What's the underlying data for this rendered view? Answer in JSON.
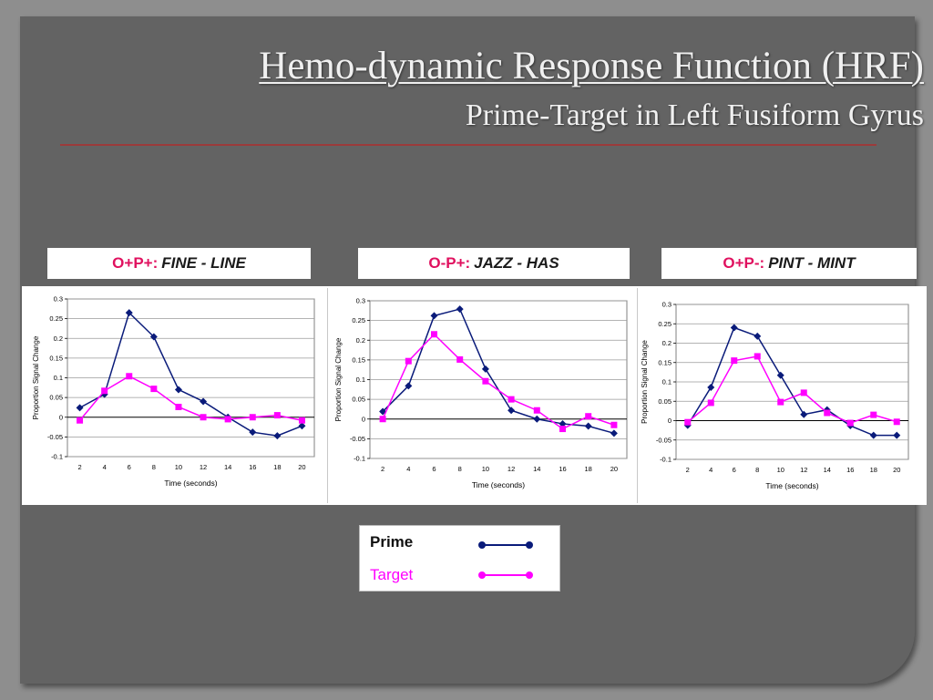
{
  "title": "Hemo-dynamic Response Function (HRF)",
  "subtitle": "Prime-Target in Left Fusiform Gyrus",
  "colors": {
    "prime": "#0a1b7a",
    "target": "#ff00ff",
    "condition_code": "#e0115f"
  },
  "legend": {
    "prime": "Prime",
    "target": "Target"
  },
  "chart_data": [
    {
      "type": "line",
      "panel_label": {
        "code": "O+P+:",
        "words": "FINE - LINE"
      },
      "xlabel": "Time (seconds)",
      "ylabel": "Proportion  Signal  Change",
      "x": [
        2,
        4,
        6,
        8,
        10,
        12,
        14,
        16,
        18,
        20
      ],
      "ylim": [
        -0.1,
        0.3
      ],
      "yticks": [
        -0.1,
        -0.05,
        0,
        0.05,
        0.1,
        0.15,
        0.2,
        0.25,
        0.3
      ],
      "grid": true,
      "series": [
        {
          "name": "Prime",
          "values": [
            0.024,
            0.058,
            0.265,
            0.204,
            0.07,
            0.04,
            0.0,
            -0.038,
            -0.047,
            -0.022
          ]
        },
        {
          "name": "Target",
          "values": [
            -0.008,
            0.067,
            0.104,
            0.072,
            0.026,
            0.0,
            -0.005,
            0.0,
            0.005,
            -0.008
          ]
        }
      ]
    },
    {
      "type": "line",
      "panel_label": {
        "code": "O-P+:",
        "words": "JAZZ - HAS"
      },
      "xlabel": "Time (seconds)",
      "ylabel": "Proportion  Signal  Change",
      "x": [
        2,
        4,
        6,
        8,
        10,
        12,
        14,
        16,
        18,
        20
      ],
      "ylim": [
        -0.1,
        0.3
      ],
      "yticks": [
        -0.1,
        -0.05,
        0,
        0.05,
        0.1,
        0.15,
        0.2,
        0.25,
        0.3
      ],
      "grid": true,
      "series": [
        {
          "name": "Prime",
          "values": [
            0.019,
            0.084,
            0.262,
            0.279,
            0.127,
            0.022,
            0.0,
            -0.012,
            -0.018,
            -0.036
          ]
        },
        {
          "name": "Target",
          "values": [
            0.0,
            0.147,
            0.215,
            0.151,
            0.096,
            0.05,
            0.022,
            -0.025,
            0.007,
            -0.015
          ]
        }
      ]
    },
    {
      "type": "line",
      "panel_label": {
        "code": "O+P-:",
        "words": "PINT - MINT"
      },
      "xlabel": "Time (seconds)",
      "ylabel": "Proportion  Signal  Change",
      "x": [
        2,
        4,
        6,
        8,
        10,
        12,
        14,
        16,
        18,
        20
      ],
      "ylim": [
        -0.1,
        0.3
      ],
      "yticks": [
        -0.1,
        -0.05,
        0,
        0.05,
        0.1,
        0.15,
        0.2,
        0.25,
        0.3
      ],
      "grid": true,
      "series": [
        {
          "name": "Prime",
          "values": [
            -0.012,
            0.086,
            0.24,
            0.218,
            0.117,
            0.016,
            0.028,
            -0.013,
            -0.038,
            -0.038
          ]
        },
        {
          "name": "Target",
          "values": [
            -0.004,
            0.046,
            0.155,
            0.166,
            0.048,
            0.072,
            0.02,
            -0.006,
            0.015,
            -0.003
          ]
        }
      ]
    }
  ]
}
